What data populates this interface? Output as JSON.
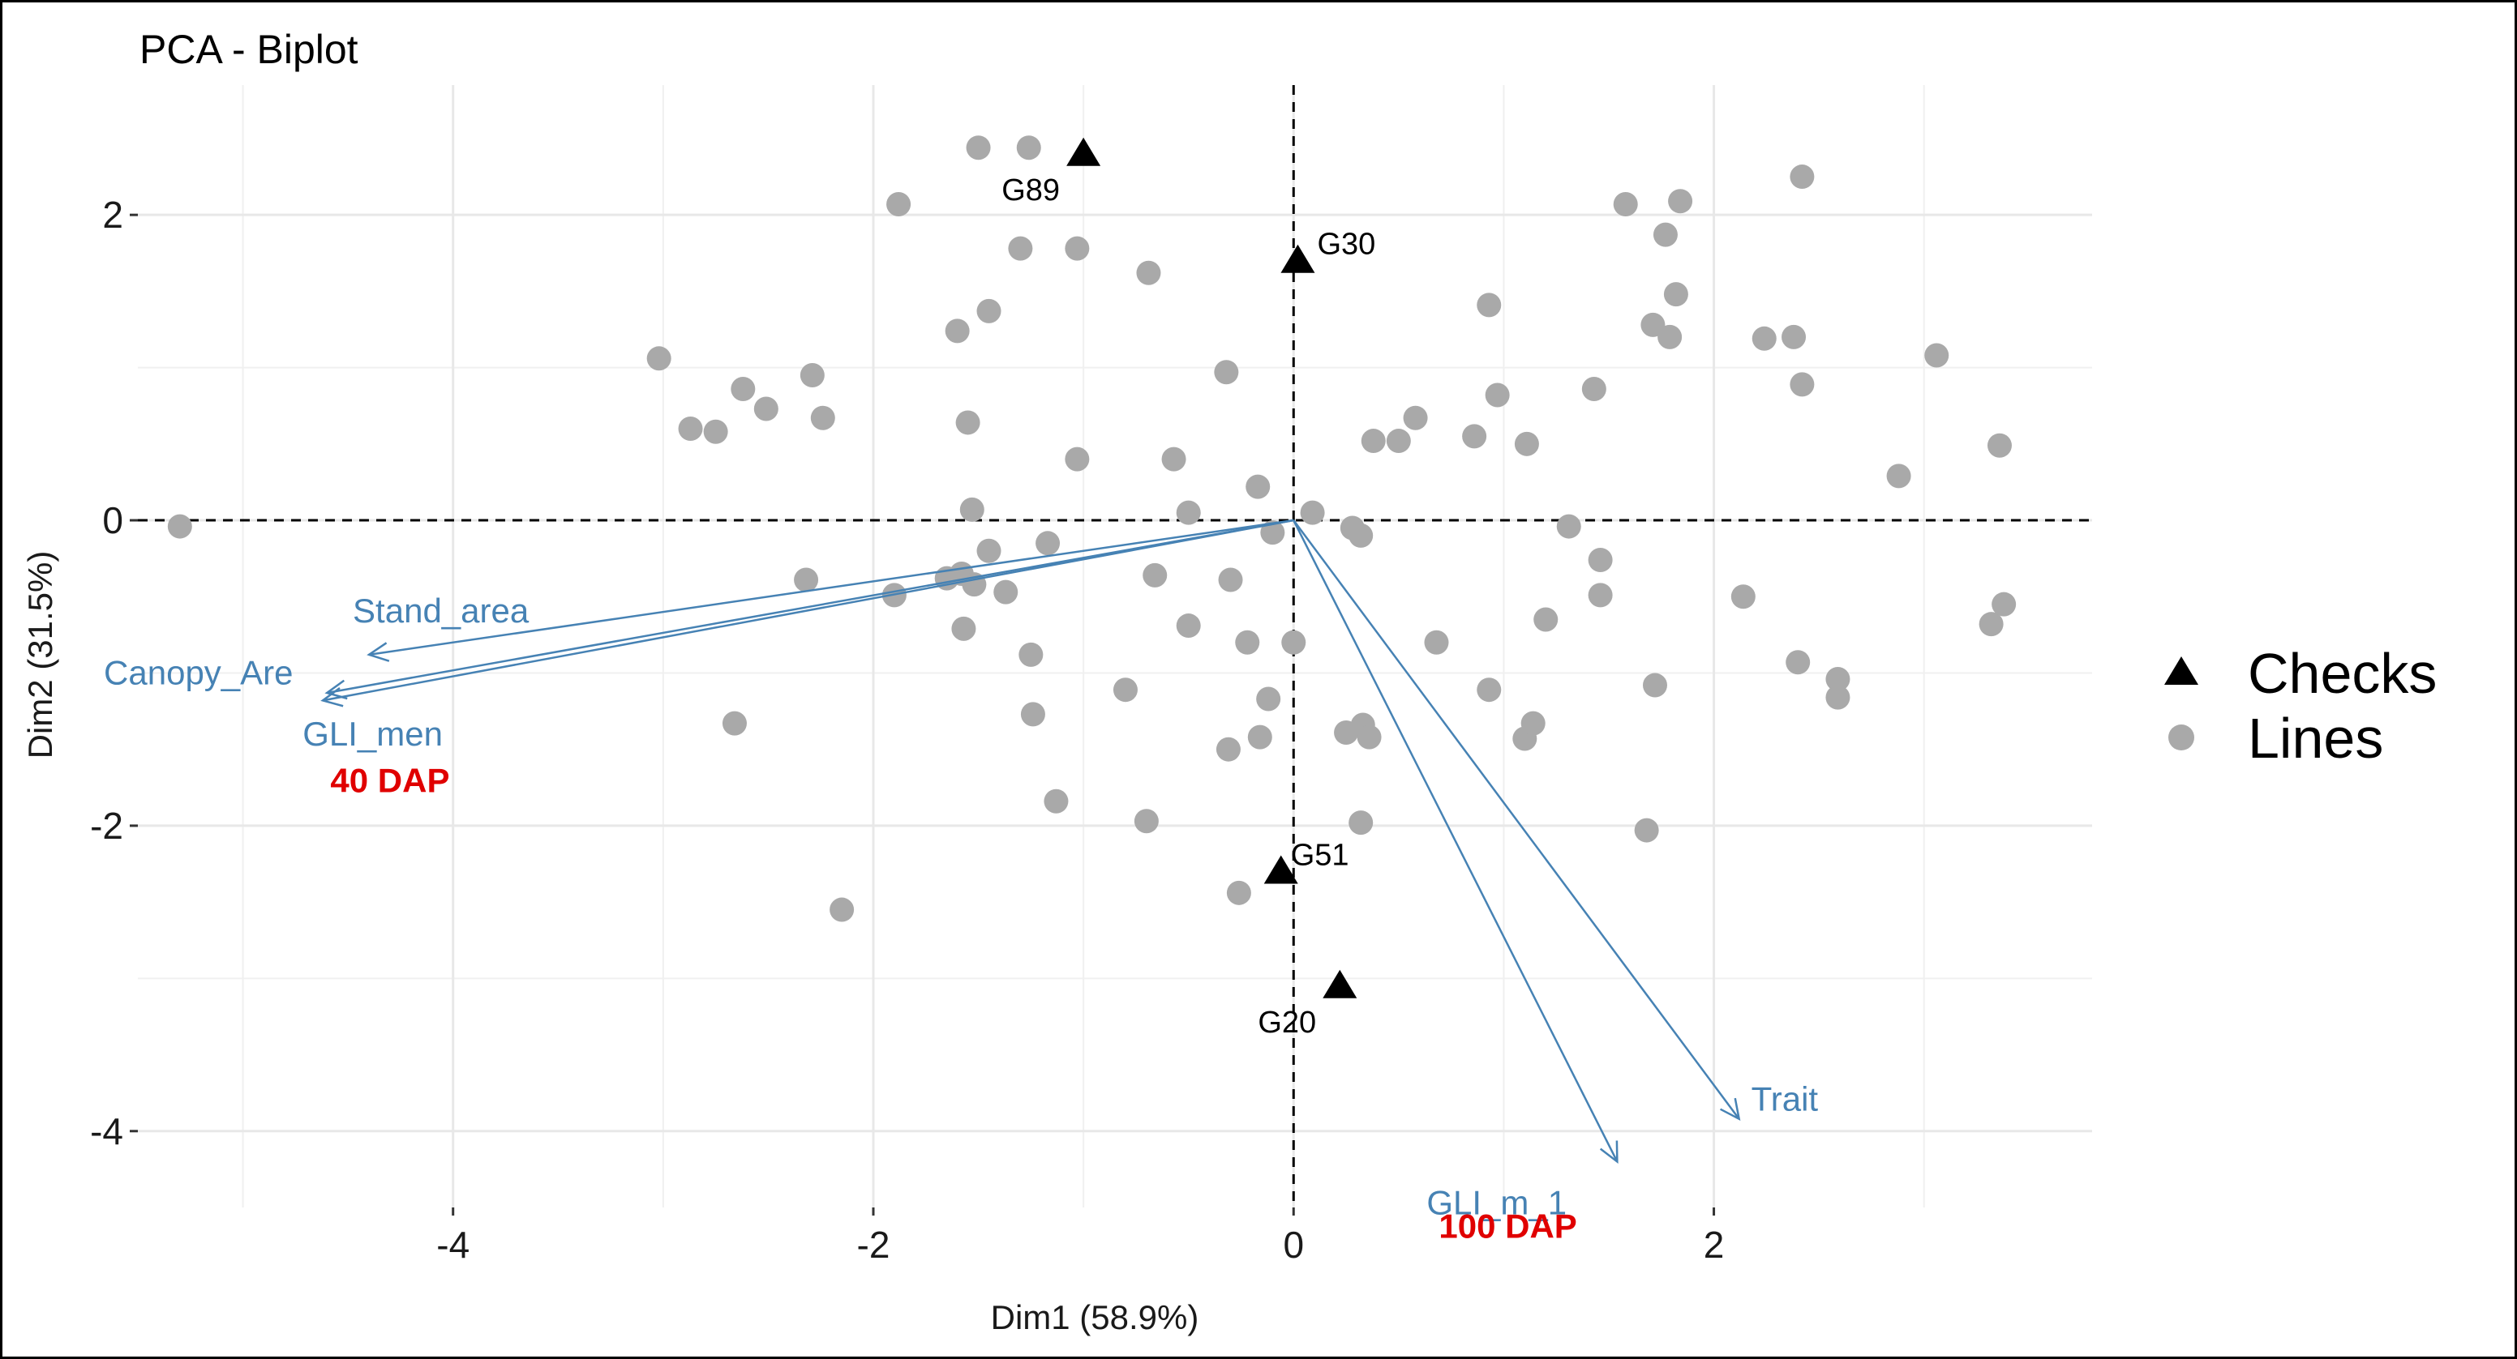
{
  "chart_data": {
    "type": "scatter",
    "title": "PCA - Biplot",
    "xlabel": "Dim1 (58.9%)",
    "ylabel": "Dim2 (31.5%)",
    "xlim": [
      -5.5,
      3.8
    ],
    "ylim": [
      -4.5,
      2.85
    ],
    "x_ticks": [
      -4,
      -2,
      0,
      2
    ],
    "y_ticks": [
      -4,
      -2,
      0,
      2
    ],
    "x_tick_labels": [
      "-4",
      "-2",
      "0",
      "2"
    ],
    "y_tick_labels": [
      "-4",
      "-2",
      "0",
      "2"
    ],
    "grid": true,
    "reference_lines": [
      {
        "axis": "x",
        "value": 0,
        "style": "dashed"
      },
      {
        "axis": "y",
        "value": 0,
        "style": "dashed"
      }
    ],
    "legend": {
      "position": "right",
      "entries": [
        {
          "label": "Checks",
          "shape": "triangle",
          "color": "#000000"
        },
        {
          "label": "Lines",
          "shape": "circle",
          "color": "#a9a9a9"
        }
      ]
    },
    "colors": {
      "lines": "#a9a9a9",
      "checks": "#000000",
      "vectors": "#4682b4",
      "annotations": "#e00000"
    },
    "series": [
      {
        "name": "Checks",
        "marker": "triangle",
        "points": [
          {
            "x": -1.0,
            "y": 2.4,
            "label": "G89"
          },
          {
            "x": 0.02,
            "y": 1.7,
            "label": "G30"
          },
          {
            "x": -0.06,
            "y": -2.3,
            "label": "G51"
          },
          {
            "x": 0.22,
            "y": -3.05,
            "label": "G20"
          }
        ]
      },
      {
        "name": "Lines",
        "marker": "circle",
        "points": [
          {
            "x": -1.5,
            "y": 2.44
          },
          {
            "x": -1.26,
            "y": 2.44
          },
          {
            "x": -1.88,
            "y": 2.07
          },
          {
            "x": -1.3,
            "y": 1.78
          },
          {
            "x": -1.03,
            "y": 1.78
          },
          {
            "x": -0.69,
            "y": 1.62
          },
          {
            "x": -1.45,
            "y": 1.37
          },
          {
            "x": -1.6,
            "y": 1.24
          },
          {
            "x": -3.02,
            "y": 1.06
          },
          {
            "x": -2.87,
            "y": 0.6
          },
          {
            "x": -2.75,
            "y": 0.58
          },
          {
            "x": -2.62,
            "y": 0.86
          },
          {
            "x": -2.51,
            "y": 0.73
          },
          {
            "x": -2.29,
            "y": 0.95
          },
          {
            "x": -2.24,
            "y": 0.67
          },
          {
            "x": -1.55,
            "y": 0.64
          },
          {
            "x": -1.03,
            "y": 0.4
          },
          {
            "x": -0.57,
            "y": 0.4
          },
          {
            "x": -0.32,
            "y": 0.97
          },
          {
            "x": -0.17,
            "y": 0.22
          },
          {
            "x": -0.5,
            "y": 0.05
          },
          {
            "x": -1.53,
            "y": 0.07
          },
          {
            "x": -5.3,
            "y": -0.04
          },
          {
            "x": -1.45,
            "y": -0.2
          },
          {
            "x": -1.17,
            "y": -0.15
          },
          {
            "x": -0.1,
            "y": -0.08
          },
          {
            "x": 0.09,
            "y": 0.05
          },
          {
            "x": 0.28,
            "y": -0.05
          },
          {
            "x": 0.32,
            "y": -0.1
          },
          {
            "x": -2.32,
            "y": -0.39
          },
          {
            "x": -1.9,
            "y": -0.49
          },
          {
            "x": -1.65,
            "y": -0.38
          },
          {
            "x": -1.58,
            "y": -0.35
          },
          {
            "x": -1.52,
            "y": -0.42
          },
          {
            "x": -1.37,
            "y": -0.47
          },
          {
            "x": -1.57,
            "y": -0.71
          },
          {
            "x": -0.66,
            "y": -0.36
          },
          {
            "x": -0.3,
            "y": -0.39
          },
          {
            "x": -0.5,
            "y": -0.69
          },
          {
            "x": -0.22,
            "y": -0.8
          },
          {
            "x": 0.0,
            "y": -0.8
          },
          {
            "x": -1.25,
            "y": -0.88
          },
          {
            "x": -2.66,
            "y": -1.33
          },
          {
            "x": -1.24,
            "y": -1.27
          },
          {
            "x": -0.8,
            "y": -1.11
          },
          {
            "x": -0.12,
            "y": -1.17
          },
          {
            "x": -1.13,
            "y": -1.84
          },
          {
            "x": -0.7,
            "y": -1.97
          },
          {
            "x": -0.31,
            "y": -1.5
          },
          {
            "x": -0.16,
            "y": -1.42
          },
          {
            "x": 0.33,
            "y": -1.34
          },
          {
            "x": 0.36,
            "y": -1.42
          },
          {
            "x": 0.25,
            "y": -1.39
          },
          {
            "x": 0.32,
            "y": -1.98
          },
          {
            "x": -0.26,
            "y": -2.44
          },
          {
            "x": -2.15,
            "y": -2.55
          },
          {
            "x": 0.38,
            "y": 0.52
          },
          {
            "x": 0.5,
            "y": 0.52
          },
          {
            "x": 0.58,
            "y": 0.67
          },
          {
            "x": 0.86,
            "y": 0.55
          },
          {
            "x": 0.93,
            "y": 1.41
          },
          {
            "x": 0.97,
            "y": 0.82
          },
          {
            "x": 1.11,
            "y": 0.5
          },
          {
            "x": 1.43,
            "y": 0.86
          },
          {
            "x": 0.68,
            "y": -0.8
          },
          {
            "x": 1.2,
            "y": -0.65
          },
          {
            "x": 1.31,
            "y": -0.04
          },
          {
            "x": 1.46,
            "y": -0.26
          },
          {
            "x": 1.46,
            "y": -0.49
          },
          {
            "x": 0.93,
            "y": -1.11
          },
          {
            "x": 1.1,
            "y": -1.43
          },
          {
            "x": 1.14,
            "y": -1.33
          },
          {
            "x": 1.58,
            "y": 2.07
          },
          {
            "x": 1.77,
            "y": 1.87
          },
          {
            "x": 1.84,
            "y": 2.09
          },
          {
            "x": 1.71,
            "y": 1.28
          },
          {
            "x": 1.79,
            "y": 1.2
          },
          {
            "x": 1.82,
            "y": 1.48
          },
          {
            "x": 2.24,
            "y": 1.19
          },
          {
            "x": 2.38,
            "y": 1.2
          },
          {
            "x": 2.42,
            "y": 0.89
          },
          {
            "x": 2.42,
            "y": 2.25
          },
          {
            "x": 3.06,
            "y": 1.08
          },
          {
            "x": 2.88,
            "y": 0.29
          },
          {
            "x": 3.36,
            "y": 0.49
          },
          {
            "x": 2.14,
            "y": -0.5
          },
          {
            "x": 2.4,
            "y": -0.93
          },
          {
            "x": 2.59,
            "y": -1.04
          },
          {
            "x": 2.59,
            "y": -1.16
          },
          {
            "x": 3.32,
            "y": -0.68
          },
          {
            "x": 3.38,
            "y": -0.55
          },
          {
            "x": 1.72,
            "y": -1.08
          },
          {
            "x": 1.68,
            "y": -2.03
          }
        ]
      }
    ],
    "variables": [
      {
        "name": "Stand_area",
        "x": -4.4,
        "y": -0.88
      },
      {
        "name": "Canopy_Are",
        "x": -4.62,
        "y": -1.18
      },
      {
        "name": "GLI_men",
        "x": -4.6,
        "y": -1.13
      },
      {
        "name": "Trait",
        "x": 2.12,
        "y": -3.92
      },
      {
        "name": "GLI_m_1",
        "x": 1.54,
        "y": -4.2
      }
    ],
    "annotations": [
      {
        "text": "40 DAP",
        "x": -4.3,
        "y": -1.78,
        "color": "#e00000"
      },
      {
        "text": "100 DAP",
        "x": 1.02,
        "y": -4.7,
        "color": "#e00000"
      }
    ]
  }
}
